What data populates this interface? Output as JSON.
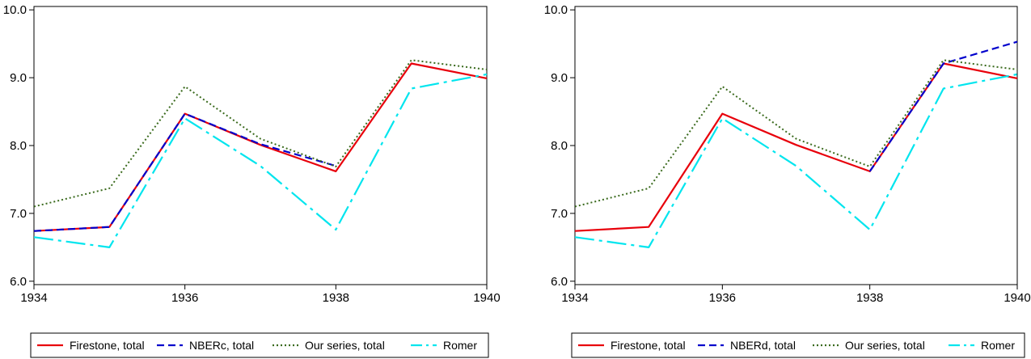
{
  "chart_data": [
    {
      "type": "line",
      "title": "",
      "xlabel": "",
      "ylabel": "",
      "x": [
        1934,
        1935,
        1936,
        1937,
        1938,
        1939,
        1940
      ],
      "xticks": [
        1934,
        1936,
        1938,
        1940
      ],
      "yticks": [
        6.0,
        7.0,
        8.0,
        9.0,
        10.0
      ],
      "xlim": [
        1934,
        1940
      ],
      "ylim": [
        5.95,
        10.05
      ],
      "grid": false,
      "legend_position": "bottom",
      "series": [
        {
          "name": "Firestone, total",
          "color": "#e8000b",
          "style": "solid",
          "values": [
            6.74,
            6.8,
            8.47,
            8.01,
            7.62,
            9.21,
            8.99
          ]
        },
        {
          "name": "NBERc, total",
          "color": "#0000cc",
          "style": "dashed",
          "values": [
            6.74,
            6.8,
            8.47,
            8.02,
            7.7,
            null,
            null
          ]
        },
        {
          "name": "Our series, total",
          "color": "#3b6b1e",
          "style": "dotted",
          "values": [
            7.1,
            7.37,
            8.87,
            8.1,
            7.69,
            9.26,
            9.12
          ]
        },
        {
          "name": "Romer",
          "color": "#00e5ee",
          "style": "dashdot",
          "values": [
            6.65,
            6.5,
            8.4,
            7.7,
            6.76,
            8.84,
            9.05
          ]
        }
      ]
    },
    {
      "type": "line",
      "title": "",
      "xlabel": "",
      "ylabel": "",
      "x": [
        1934,
        1935,
        1936,
        1937,
        1938,
        1939,
        1940
      ],
      "xticks": [
        1934,
        1936,
        1938,
        1940
      ],
      "yticks": [
        6.0,
        7.0,
        8.0,
        9.0,
        10.0
      ],
      "xlim": [
        1934,
        1940
      ],
      "ylim": [
        5.95,
        10.05
      ],
      "grid": false,
      "legend_position": "bottom",
      "series": [
        {
          "name": "Firestone, total",
          "color": "#e8000b",
          "style": "solid",
          "values": [
            6.74,
            6.8,
            8.47,
            8.01,
            7.62,
            9.21,
            8.99
          ]
        },
        {
          "name": "NBERd, total",
          "color": "#0000cc",
          "style": "dashed",
          "values": [
            null,
            null,
            null,
            null,
            7.62,
            9.21,
            9.53
          ]
        },
        {
          "name": "Our series, total",
          "color": "#3b6b1e",
          "style": "dotted",
          "values": [
            7.1,
            7.37,
            8.87,
            8.1,
            7.69,
            9.26,
            9.12
          ]
        },
        {
          "name": "Romer",
          "color": "#00e5ee",
          "style": "dashdot",
          "values": [
            6.65,
            6.5,
            8.4,
            7.7,
            6.76,
            8.84,
            9.05
          ]
        }
      ]
    }
  ]
}
